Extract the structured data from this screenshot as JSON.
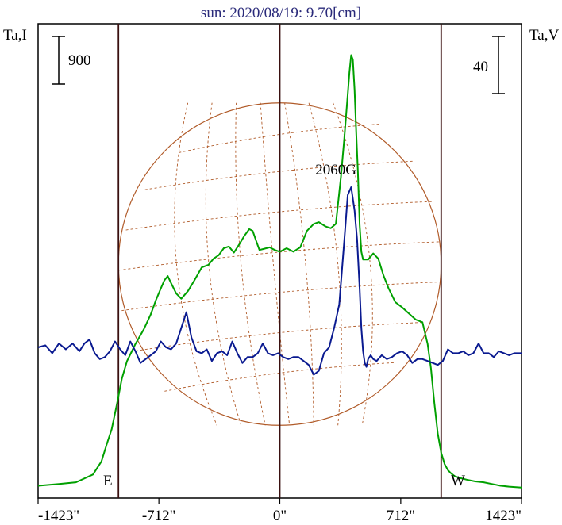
{
  "chart_data": {
    "type": "line",
    "title": "sun: 2020/08/19: 9.70[cm]",
    "ylabel_left": "Ta,I",
    "ylabel_right": "Ta,V",
    "scale_bar_left": "900",
    "scale_bar_right": "40",
    "xlim": [
      -1423,
      1423
    ],
    "x_ticks": [
      -1423,
      -712,
      0,
      712,
      1423
    ],
    "x_tick_labels": [
      "-1423\"",
      "-712\"",
      "0\"",
      "712\"",
      "1423\""
    ],
    "vertical_lines": [
      -950,
      0,
      950
    ],
    "east_label": "E",
    "west_label": "W",
    "annotation": {
      "text": "2060G",
      "x": 480
    },
    "solar_radius_arcsec": 950,
    "series": [
      {
        "name": "I",
        "color": "#00a000",
        "x": [
          -1423,
          -1300,
          -1200,
          -1100,
          -1050,
          -1020,
          -990,
          -960,
          -930,
          -900,
          -870,
          -850,
          -800,
          -760,
          -730,
          -700,
          -680,
          -660,
          -640,
          -610,
          -580,
          -540,
          -500,
          -460,
          -420,
          -390,
          -360,
          -330,
          -300,
          -270,
          -240,
          -210,
          -180,
          -160,
          -140,
          -120,
          -100,
          -60,
          -30,
          0,
          40,
          80,
          120,
          160,
          200,
          230,
          270,
          300,
          330,
          360,
          380,
          400,
          410,
          420,
          430,
          440,
          450,
          460,
          470,
          480,
          490,
          500,
          520,
          550,
          580,
          610,
          640,
          680,
          720,
          760,
          800,
          840,
          870,
          890,
          910,
          930,
          950,
          970,
          990,
          1010,
          1030,
          1060,
          1100,
          1150,
          1200,
          1250,
          1300,
          1350,
          1423
        ],
        "y": [
          50,
          70,
          90,
          180,
          330,
          520,
          700,
          980,
          1280,
          1480,
          1600,
          1680,
          1850,
          2020,
          2180,
          2320,
          2410,
          2460,
          2380,
          2260,
          2200,
          2290,
          2420,
          2560,
          2590,
          2660,
          2700,
          2780,
          2800,
          2730,
          2820,
          2920,
          3000,
          2980,
          2870,
          2760,
          2770,
          2790,
          2760,
          2740,
          2780,
          2740,
          2790,
          2980,
          3060,
          3080,
          3030,
          3010,
          3060,
          3600,
          4050,
          4550,
          4800,
          5000,
          4950,
          4600,
          4100,
          3650,
          3050,
          2740,
          2650,
          2650,
          2650,
          2720,
          2660,
          2470,
          2320,
          2160,
          2100,
          2030,
          1960,
          1930,
          1680,
          1400,
          1000,
          650,
          430,
          300,
          230,
          190,
          160,
          140,
          120,
          100,
          90,
          70,
          50,
          40,
          30
        ]
      },
      {
        "name": "V",
        "color": "#0a1a90",
        "x": [
          -1423,
          -1380,
          -1340,
          -1300,
          -1260,
          -1220,
          -1180,
          -1150,
          -1120,
          -1090,
          -1060,
          -1030,
          -1000,
          -970,
          -940,
          -910,
          -880,
          -850,
          -820,
          -790,
          -760,
          -730,
          -700,
          -670,
          -640,
          -610,
          -580,
          -550,
          -520,
          -490,
          -460,
          -430,
          -400,
          -370,
          -340,
          -310,
          -280,
          -250,
          -220,
          -190,
          -160,
          -130,
          -100,
          -70,
          -40,
          -10,
          20,
          50,
          80,
          110,
          140,
          170,
          200,
          230,
          260,
          290,
          320,
          350,
          380,
          400,
          420,
          440,
          455,
          470,
          480,
          490,
          500,
          510,
          520,
          535,
          550,
          570,
          600,
          630,
          660,
          690,
          720,
          750,
          780,
          810,
          840,
          870,
          900,
          930,
          960,
          990,
          1020,
          1050,
          1080,
          1110,
          1140,
          1170,
          1200,
          1230,
          1260,
          1290,
          1320,
          1350,
          1380,
          1423
        ],
        "y": [
          0,
          1,
          -3,
          2,
          -1,
          2,
          -2,
          2,
          4,
          -3,
          -6,
          -5,
          -2,
          3,
          -1,
          -4,
          3,
          -2,
          -8,
          -6,
          -4,
          -2,
          3,
          0,
          -1,
          2,
          10,
          18,
          5,
          -2,
          -3,
          -1,
          -7,
          -3,
          -2,
          -4,
          3,
          -3,
          -8,
          -5,
          -5,
          -3,
          2,
          -3,
          -4,
          -3,
          -5,
          -6,
          -5,
          -5,
          -7,
          -9,
          -14,
          -12,
          -3,
          0,
          10,
          22,
          55,
          78,
          82,
          70,
          55,
          30,
          10,
          -2,
          -8,
          -10,
          -6,
          -4,
          -6,
          -7,
          -4,
          -6,
          -5,
          -3,
          -2,
          -4,
          -8,
          -6,
          -6,
          -7,
          -8,
          -9,
          -7,
          -1,
          -3,
          -3,
          -2,
          -4,
          -3,
          2,
          -3,
          -3,
          -5,
          -2,
          -3,
          -4,
          -3,
          -3
        ]
      }
    ]
  }
}
